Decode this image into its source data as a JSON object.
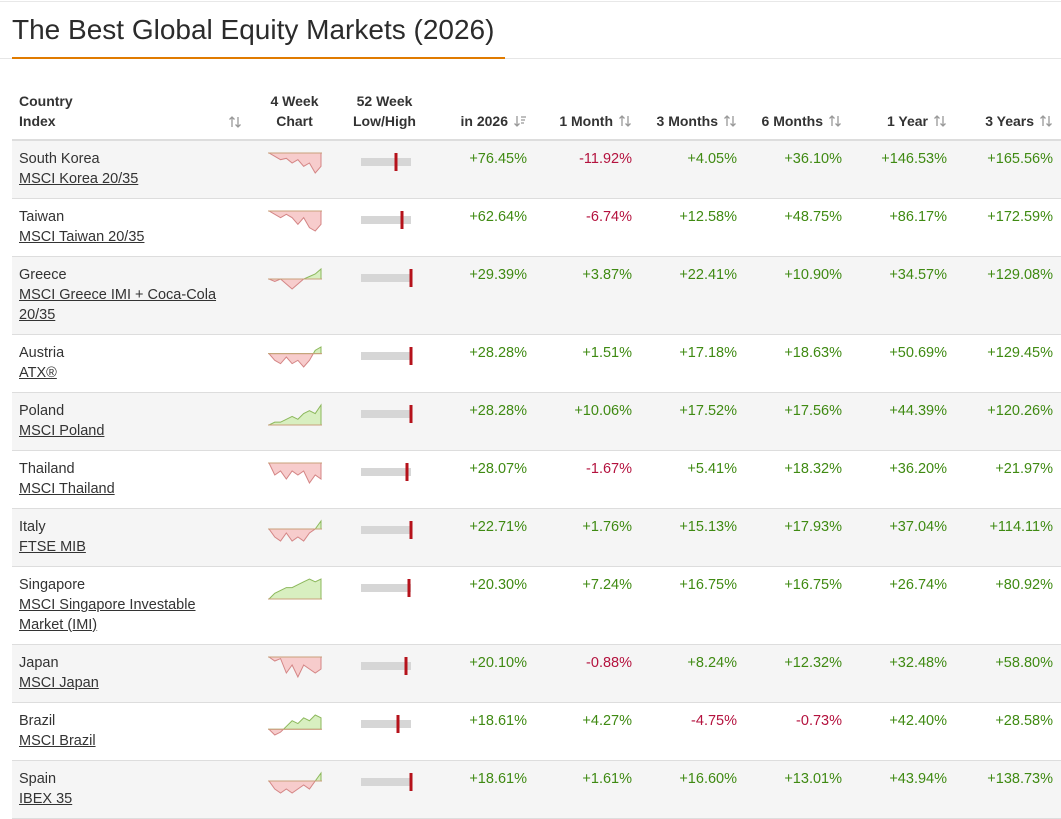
{
  "header": {
    "title": "The Best Global Equity Markets (2026)"
  },
  "table": {
    "columns": [
      [
        "Country",
        "Index"
      ],
      [
        "4 Week",
        "Chart"
      ],
      [
        "52 Week",
        "Low/High"
      ],
      [
        "in 2026"
      ],
      [
        "1 Month"
      ],
      [
        "3 Months"
      ],
      [
        "6 Months"
      ],
      [
        "1 Year"
      ],
      [
        "3 Years"
      ]
    ],
    "rows": [
      {
        "country": "South Korea",
        "index": "MSCI Korea 20/35",
        "trend": [
          0,
          -0.5,
          -1,
          -0.8,
          -1.5,
          -1,
          -2,
          -1.5,
          -3,
          -2
        ],
        "range_position": 0.7,
        "values": [
          "+76.45%",
          "-11.92%",
          "+4.05%",
          "+36.10%",
          "+146.53%",
          "+165.56%"
        ]
      },
      {
        "country": "Taiwan",
        "index": "MSCI Taiwan 20/35",
        "trend": [
          0,
          -0.5,
          -1,
          -0.5,
          -1,
          -2,
          -1,
          -2.5,
          -3,
          -2
        ],
        "range_position": 0.82,
        "values": [
          "+62.64%",
          "-6.74%",
          "+12.58%",
          "+48.75%",
          "+86.17%",
          "+172.59%"
        ]
      },
      {
        "country": "Greece",
        "index": "MSCI Greece IMI + Coca-Cola 20/35",
        "trend": [
          0,
          -0.5,
          0,
          -1,
          -2,
          -1,
          0,
          0.5,
          1,
          2
        ],
        "range_position": 1,
        "values": [
          "+29.39%",
          "+3.87%",
          "+22.41%",
          "+10.90%",
          "+34.57%",
          "+129.08%"
        ]
      },
      {
        "country": "Austria",
        "index": "ATX®",
        "trend": [
          0,
          -1,
          -1.5,
          -0.5,
          -1.5,
          -1,
          -2,
          -1,
          0.5,
          1
        ],
        "range_position": 1,
        "values": [
          "+28.28%",
          "+1.51%",
          "+17.18%",
          "+18.63%",
          "+50.69%",
          "+129.45%"
        ]
      },
      {
        "country": "Poland",
        "index": "MSCI Poland",
        "trend": [
          0,
          0.5,
          0.5,
          1,
          1.5,
          1,
          2,
          2.5,
          2,
          3.5
        ],
        "range_position": 1,
        "values": [
          "+28.28%",
          "+10.06%",
          "+17.52%",
          "+17.56%",
          "+44.39%",
          "+120.26%"
        ]
      },
      {
        "country": "Thailand",
        "index": "MSCI Thailand",
        "trend": [
          0,
          -1.5,
          -1,
          -2,
          -1,
          -1.5,
          -1,
          -2.5,
          -1.5,
          -2
        ],
        "range_position": 0.92,
        "values": [
          "+28.07%",
          "-1.67%",
          "+5.41%",
          "+18.32%",
          "+36.20%",
          "+21.97%"
        ]
      },
      {
        "country": "Italy",
        "index": "FTSE MIB",
        "trend": [
          0,
          -1,
          -1.5,
          -0.5,
          -1.5,
          -1,
          -1.5,
          -0.5,
          0,
          1
        ],
        "range_position": 1,
        "values": [
          "+22.71%",
          "+1.76%",
          "+15.13%",
          "+17.93%",
          "+37.04%",
          "+114.11%"
        ]
      },
      {
        "country": "Singapore",
        "index": "MSCI Singapore Investable Market (IMI)",
        "trend": [
          0,
          1,
          1.5,
          2,
          2,
          2.5,
          3,
          3.5,
          3,
          3.5
        ],
        "range_position": 0.96,
        "values": [
          "+20.30%",
          "+7.24%",
          "+16.75%",
          "+16.75%",
          "+26.74%",
          "+80.92%"
        ]
      },
      {
        "country": "Japan",
        "index": "MSCI Japan",
        "trend": [
          0,
          -0.5,
          -0.2,
          -2,
          -1,
          -2.5,
          -1,
          -1.5,
          -2,
          -1.5
        ],
        "range_position": 0.9,
        "values": [
          "+20.10%",
          "-0.88%",
          "+8.24%",
          "+12.32%",
          "+32.48%",
          "+58.80%"
        ]
      },
      {
        "country": "Brazil",
        "index": "MSCI Brazil",
        "trend": [
          0,
          -1,
          -0.5,
          0.5,
          1.5,
          1,
          2,
          1.5,
          2.5,
          2
        ],
        "range_position": 0.74,
        "values": [
          "+18.61%",
          "+4.27%",
          "-4.75%",
          "-0.73%",
          "+42.40%",
          "+28.58%"
        ]
      },
      {
        "country": "Spain",
        "index": "IBEX 35",
        "trend": [
          0,
          -1,
          -1.5,
          -1,
          -1.5,
          -1,
          -0.5,
          -1,
          0,
          1
        ],
        "range_position": 1,
        "values": [
          "+18.61%",
          "+1.61%",
          "+16.60%",
          "+13.01%",
          "+43.94%",
          "+138.73%"
        ]
      }
    ]
  }
}
